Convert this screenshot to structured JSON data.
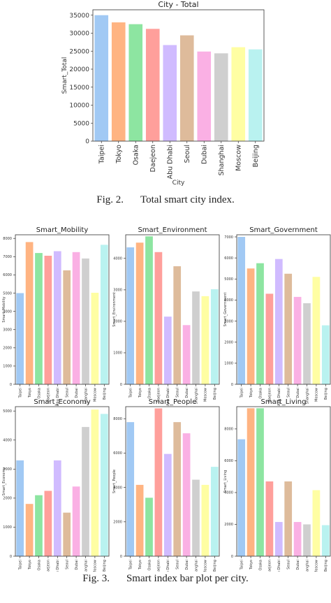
{
  "palette": [
    "#a1c9f4",
    "#ffb482",
    "#8de5a1",
    "#ff9f9b",
    "#d0bbff",
    "#debb9b",
    "#fab0e4",
    "#cfcfcf",
    "#fffea3",
    "#b9f2f0"
  ],
  "captions": {
    "fig2_num": "Fig. 2.",
    "fig2_text": "Total smart city index.",
    "fig3_num": "Fig. 3.",
    "fig3_text": "Smart index bar plot per city."
  },
  "chart_data": [
    {
      "type": "bar",
      "title": "City - Total",
      "xlabel": "City",
      "ylabel": "Smart_Total",
      "categories": [
        "Taipei",
        "Tokyo",
        "Osaka",
        "Daejeon",
        "Abu Dhabi",
        "Seoul",
        "Dubai",
        "Shanghai",
        "Moscow",
        "Beijing"
      ],
      "values": [
        35000,
        33000,
        32500,
        31200,
        26700,
        29400,
        24900,
        24400,
        26100,
        25500
      ],
      "ylim": [
        0,
        36500
      ],
      "yticks": [
        0,
        5000,
        10000,
        15000,
        20000,
        25000,
        30000,
        35000
      ]
    },
    {
      "type": "bar",
      "title": "Smart_Mobility",
      "xlabel": "",
      "ylabel": "Smart_Mobility",
      "categories": [
        "Taipei",
        "Tokyo",
        "Osaka",
        "Daejeon",
        "Abu Dhabi",
        "Seoul",
        "Dubai",
        "Shanghai",
        "Moscow",
        "Beijing"
      ],
      "values": [
        5000,
        7800,
        7200,
        7050,
        7300,
        6250,
        7250,
        6900,
        5020,
        7650
      ],
      "ylim": [
        0,
        8200
      ],
      "yticks": [
        0,
        1000,
        2000,
        3000,
        4000,
        5000,
        6000,
        7000,
        8000
      ]
    },
    {
      "type": "bar",
      "title": "Smart_Environment",
      "xlabel": "",
      "ylabel": "Smart_Environment",
      "categories": [
        "Taipei",
        "Tokyo",
        "Osaka",
        "Daejeon",
        "Abu Dhabi",
        "Seoul",
        "Dubai",
        "Shanghai",
        "Moscow",
        "Beijing"
      ],
      "values": [
        4350,
        4500,
        4700,
        4200,
        2150,
        3750,
        1880,
        2950,
        2800,
        3020
      ],
      "ylim": [
        0,
        4750
      ],
      "yticks": [
        0,
        1000,
        2000,
        3000,
        4000
      ]
    },
    {
      "type": "bar",
      "title": "Smart_Government",
      "xlabel": "",
      "ylabel": "Smart_Government",
      "categories": [
        "Taipei",
        "Tokyo",
        "Osaka",
        "Daejeon",
        "Abu Dhabi",
        "Seoul",
        "Dubai",
        "Shanghai",
        "Moscow",
        "Beijing"
      ],
      "values": [
        7000,
        5500,
        5750,
        4300,
        5950,
        5250,
        4150,
        3850,
        5100,
        2800
      ],
      "ylim": [
        0,
        7100
      ],
      "yticks": [
        0,
        1000,
        2000,
        3000,
        4000,
        5000,
        6000,
        7000
      ]
    },
    {
      "type": "bar",
      "title": "Smart_Economy",
      "xlabel": "",
      "ylabel": "Smart_Economy",
      "categories": [
        "Taipei",
        "Tokyo",
        "Osaka",
        "Daejeon",
        "Abu Dhabi",
        "Seoul",
        "Dubai",
        "Shanghai",
        "Moscow",
        "Beijing"
      ],
      "values": [
        3300,
        1800,
        2100,
        2250,
        3300,
        1500,
        2400,
        4450,
        5050,
        4900
      ],
      "ylim": [
        0,
        5150
      ],
      "yticks": [
        0,
        1000,
        2000,
        3000,
        4000,
        5000
      ]
    },
    {
      "type": "bar",
      "title": "Smart_People",
      "xlabel": "",
      "ylabel": "Smart_People",
      "categories": [
        "Taipei",
        "Tokyo",
        "Osaka",
        "Daejeon",
        "Abu Dhabi",
        "Seoul",
        "Dubai",
        "Shanghai",
        "Moscow",
        "Beijing"
      ],
      "values": [
        7800,
        4150,
        3400,
        8600,
        5950,
        7800,
        7150,
        4450,
        4150,
        5200
      ],
      "ylim": [
        0,
        8700
      ],
      "yticks": [
        0,
        2000,
        4000,
        6000,
        8000
      ]
    },
    {
      "type": "bar",
      "title": "Smart_Living",
      "xlabel": "",
      "ylabel": "Smart_Living",
      "categories": [
        "Taipei",
        "Tokyo",
        "Osaka",
        "Daejeon",
        "Abu Dhabi",
        "Seoul",
        "Dubai",
        "Shanghai",
        "Moscow",
        "Beijing"
      ],
      "values": [
        7350,
        9300,
        9300,
        4700,
        2150,
        4700,
        2150,
        2000,
        4150,
        1950
      ],
      "ylim": [
        0,
        9400
      ],
      "yticks": [
        0,
        2000,
        4000,
        6000,
        8000
      ]
    }
  ]
}
